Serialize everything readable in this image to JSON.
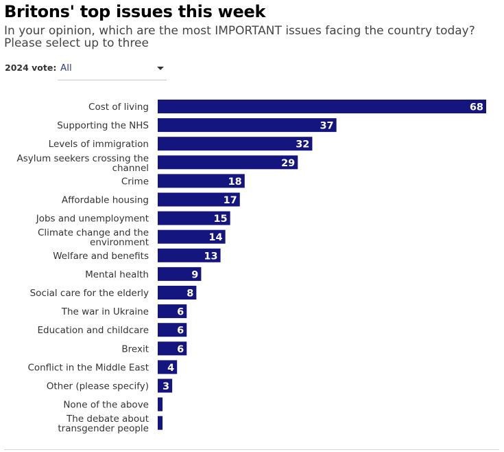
{
  "header": {
    "title": "Britons' top issues this week",
    "subtitle": "In your opinion, which are the most IMPORTANT issues facing the country today? Please select up to three"
  },
  "filter": {
    "label": "2024 vote:",
    "selected": "All"
  },
  "colors": {
    "bar": "#15157f",
    "bar_label": "#ffffff",
    "category_label": "#333333"
  },
  "chart_data": {
    "type": "bar",
    "orientation": "horizontal",
    "categories": [
      "Cost of living",
      "Supporting the NHS",
      "Levels of immigration",
      "Asylum seekers crossing the channel",
      "Crime",
      "Affordable housing",
      "Jobs and unemployment",
      "Climate change and the environment",
      "Welfare and benefits",
      "Mental health",
      "Social care for the elderly",
      "The war in Ukraine",
      "Education and childcare",
      "Brexit",
      "Conflict in the Middle East",
      "Other (please specify)",
      "None of the above",
      "The debate about transgender people"
    ],
    "values": [
      68,
      37,
      32,
      29,
      18,
      17,
      15,
      14,
      13,
      9,
      8,
      6,
      6,
      6,
      4,
      3,
      1,
      1
    ],
    "data_labels": [
      "68",
      "37",
      "32",
      "29",
      "18",
      "17",
      "15",
      "14",
      "13",
      "9",
      "8",
      "6",
      "6",
      "6",
      "4",
      "3",
      "",
      ""
    ],
    "title": "",
    "xlabel": "",
    "ylabel": "",
    "xlim": [
      0,
      68
    ],
    "grid": false,
    "legend": "none"
  }
}
